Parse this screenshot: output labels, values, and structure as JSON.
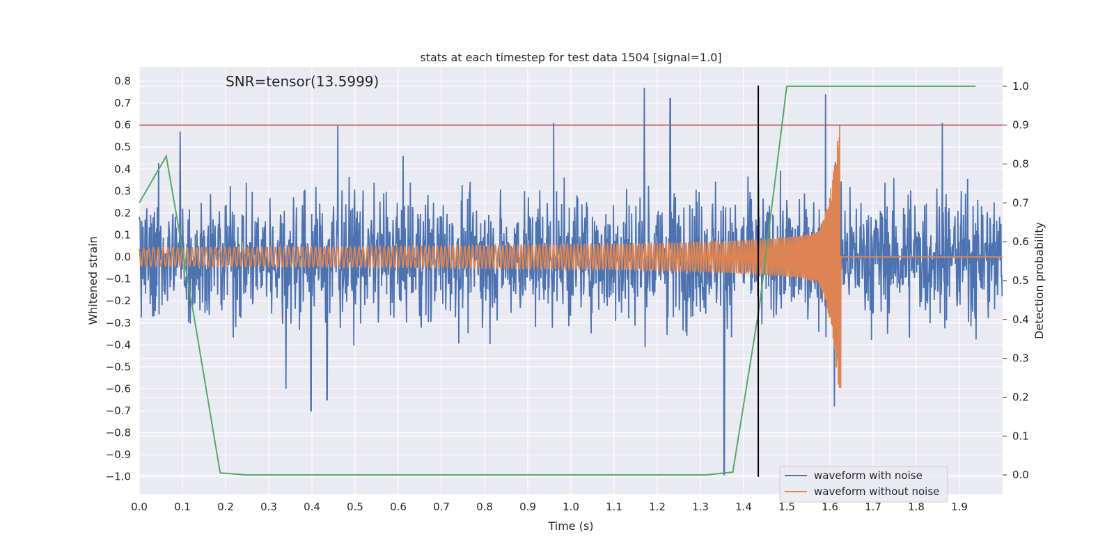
{
  "chart_data": {
    "type": "line",
    "title": "stats at each timestep for test data 1504 [signal=1.0]",
    "xlabel": "Time (s)",
    "ylabel": "Whitened strain",
    "y2label": "Detection probability",
    "annotation": "SNR=tensor(13.5999)",
    "xlim": [
      0.0,
      2.0
    ],
    "ylim": [
      -1.08,
      0.865
    ],
    "y2lim": [
      -0.05,
      1.05
    ],
    "x_ticks": [
      "0.0",
      "0.1",
      "0.2",
      "0.3",
      "0.4",
      "0.5",
      "0.6",
      "0.7",
      "0.8",
      "0.9",
      "1.0",
      "1.1",
      "1.2",
      "1.3",
      "1.4",
      "1.5",
      "1.6",
      "1.7",
      "1.8",
      "1.9"
    ],
    "y_ticks": [
      "0.8",
      "0.7",
      "0.6",
      "0.5",
      "0.4",
      "0.3",
      "0.2",
      "0.1",
      "0.0",
      "−0.1",
      "−0.2",
      "−0.3",
      "−0.4",
      "−0.5",
      "−0.6",
      "−0.7",
      "−0.8",
      "−0.9",
      "−1.0"
    ],
    "y2_ticks": [
      "0.0",
      "0.1",
      "0.2",
      "0.3",
      "0.4",
      "0.5",
      "0.6",
      "0.7",
      "0.8",
      "0.9",
      "1.0"
    ],
    "grid": true,
    "legend_position": "lower-right",
    "threshold": {
      "y": 0.6,
      "color": "#c44e52"
    },
    "vline": {
      "x": 1.434,
      "ymin": -1.0,
      "ymax": 0.78,
      "color": "#000000"
    },
    "series": [
      {
        "name": "waveform with noise",
        "color": "#4c72b0",
        "style": "dense noisy trace, approximately normal with std 0.21, spikes to 0.77 and -0.99",
        "spikes": [
          [
            0.095,
            0.57
          ],
          [
            0.46,
            0.6
          ],
          [
            0.96,
            0.61
          ],
          [
            1.17,
            0.77
          ],
          [
            1.23,
            0.72
          ],
          [
            1.355,
            -0.99
          ],
          [
            1.59,
            0.74
          ],
          [
            1.61,
            -0.68
          ],
          [
            1.86,
            0.61
          ],
          [
            0.398,
            -0.7
          ],
          [
            0.435,
            -0.65
          ],
          [
            0.34,
            -0.6
          ]
        ]
      },
      {
        "name": "waveform without noise",
        "color": "#dd8452",
        "style": "inspiral chirp, amplitude 0.04 growing to 0.6 near 1.6 s, frequency increasing, flat after 1.625 s"
      },
      {
        "color": "#55a868",
        "axis": "right",
        "x": [
          0.0,
          0.0625,
          0.125,
          0.1875,
          0.25,
          0.3125,
          0.375,
          0.4375,
          0.5,
          0.5625,
          0.625,
          0.6875,
          0.75,
          0.8125,
          0.875,
          0.9375,
          1.0,
          1.0625,
          1.125,
          1.1875,
          1.25,
          1.3125,
          1.375,
          1.4375,
          1.5,
          1.5625,
          1.625,
          1.6875,
          1.75,
          1.8125,
          1.875,
          1.9375
        ],
        "values": [
          0.7,
          0.82,
          0.42,
          0.005,
          0.0,
          0.0,
          0.0,
          0.0,
          0.0,
          0.0,
          0.0,
          0.0,
          0.0,
          0.0,
          0.0,
          0.0,
          0.0,
          0.0,
          0.0,
          0.0,
          0.0,
          0.0,
          0.007,
          0.44,
          1.0,
          1.0,
          1.0,
          1.0,
          1.0,
          1.0,
          1.0,
          1.0
        ]
      }
    ]
  }
}
